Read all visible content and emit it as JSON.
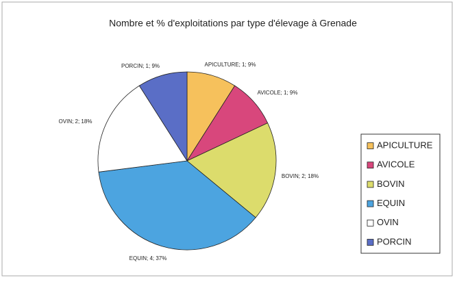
{
  "chart_data": {
    "type": "pie",
    "title": "Nombre et % d'exploitations par type d'élevage à Grenade",
    "categories": [
      "APICULTURE",
      "AVICOLE",
      "BOVIN",
      "EQUIN",
      "OVIN",
      "PORCIN"
    ],
    "counts": [
      1,
      1,
      2,
      4,
      2,
      1
    ],
    "values": [
      9,
      9,
      18,
      37,
      18,
      9
    ],
    "value_labels": [
      "APICULTURE; 1; 9%",
      "AVICOLE; 1; 9%",
      "BOVIN; 2; 18%",
      "EQUIN; 4; 37%",
      "OVIN; 2; 18%",
      "PORCIN; 1; 9%"
    ],
    "colors": [
      "#f6c15c",
      "#d8477c",
      "#dcdc6c",
      "#4ca4e0",
      "#ffffff",
      "#5a6ec6"
    ],
    "legend": "right"
  }
}
